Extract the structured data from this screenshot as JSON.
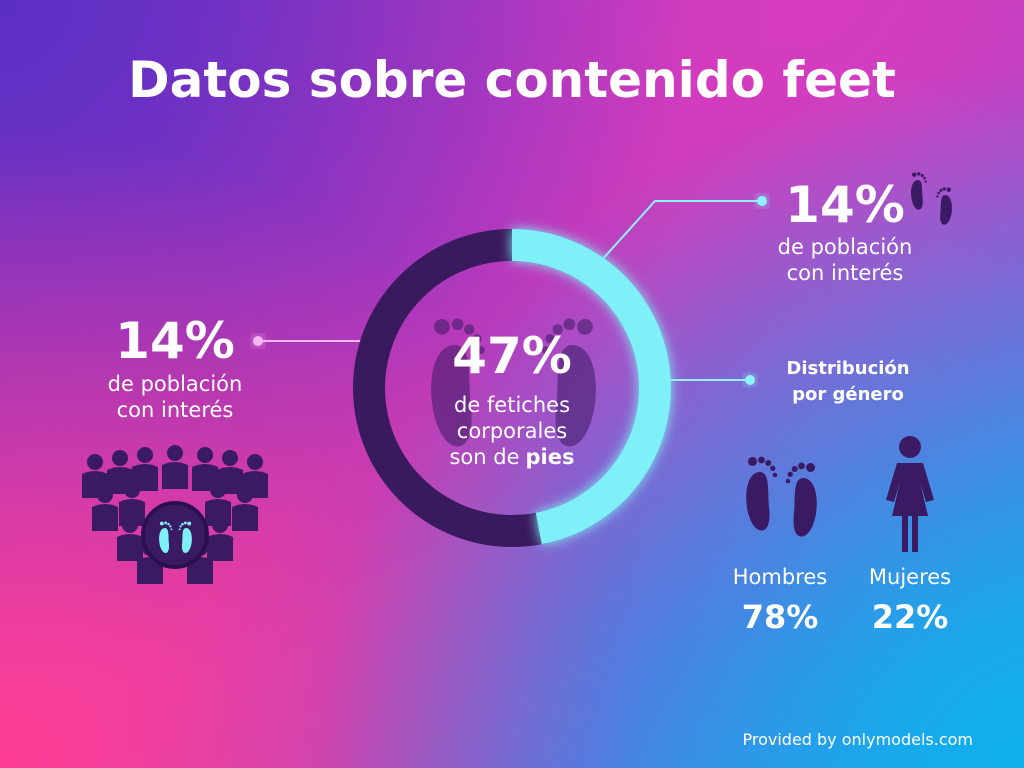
{
  "title": "Datos sobre contenido feet",
  "donut": {
    "value": 47,
    "label": "47%",
    "caption_lines": [
      "de fetiches",
      "corporales",
      "son de"
    ],
    "caption_emphasis": "pies"
  },
  "left_stat": {
    "label": "14%",
    "lines": [
      "de población",
      "con interés"
    ]
  },
  "right_stat": {
    "label": "14%",
    "lines": [
      "de población",
      "con interés"
    ]
  },
  "distribution": {
    "title_lines": [
      "Distribución",
      "por género"
    ],
    "groups": [
      {
        "name": "Hombres",
        "label": "78%"
      },
      {
        "name": "Mujeres",
        "label": "22%"
      }
    ]
  },
  "footer": "Provided by onlymodels.com"
}
